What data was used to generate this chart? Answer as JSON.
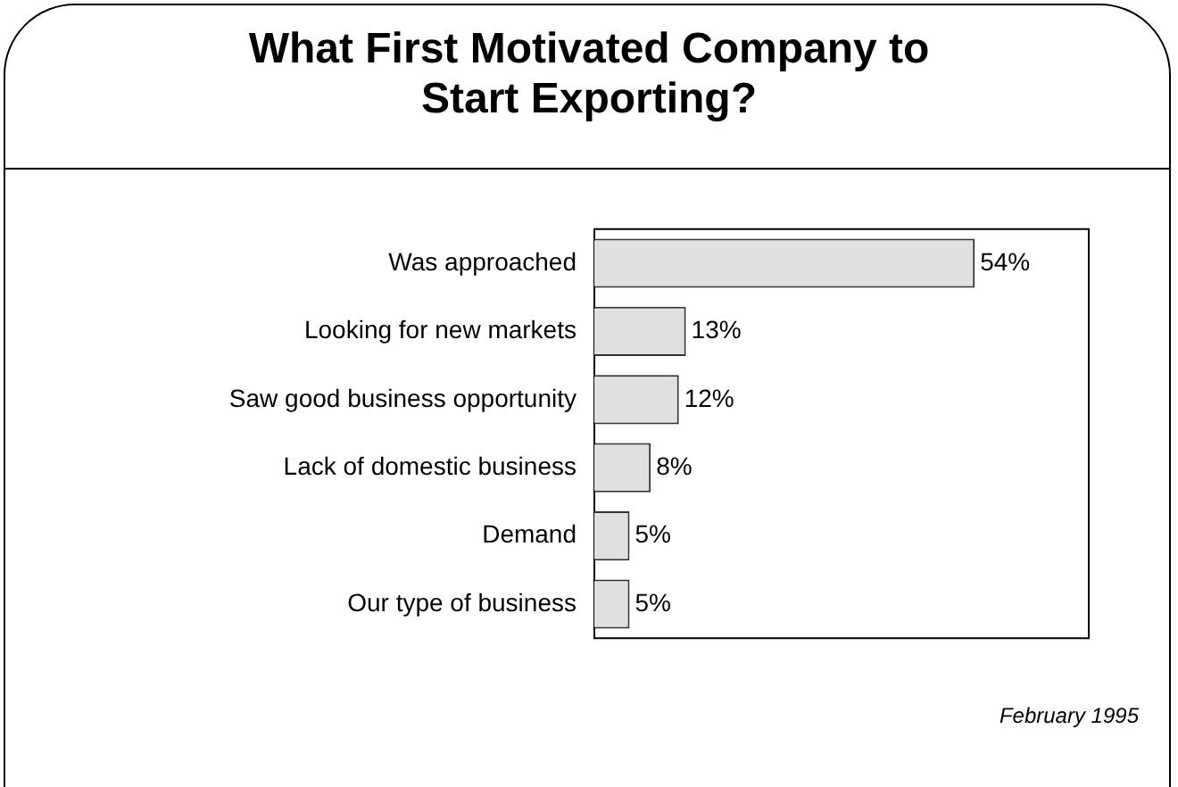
{
  "chart_data": {
    "type": "bar",
    "orientation": "horizontal",
    "title": "What First Motivated Company to Start Exporting?",
    "categories": [
      "Was approached",
      "Looking for new markets",
      "Saw good business opportunity",
      "Lack of domestic business",
      "Demand",
      "Our type of business"
    ],
    "values": [
      54,
      13,
      12,
      8,
      5,
      5
    ],
    "value_labels": [
      "54%",
      "13%",
      "12%",
      "8%",
      "5%",
      "5%"
    ],
    "color": "#e0e0e0",
    "legend": false,
    "annotations": [
      "February 1995"
    ]
  }
}
